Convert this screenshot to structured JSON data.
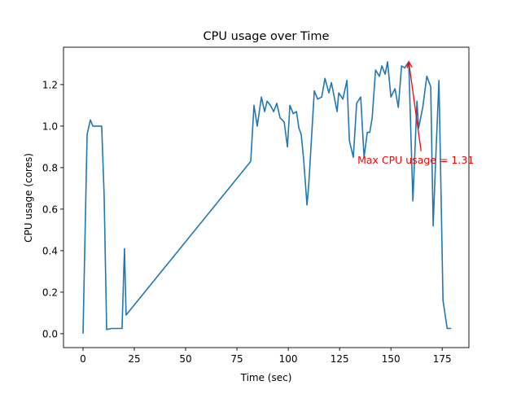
{
  "chart_data": {
    "type": "line",
    "title": "CPU usage over Time",
    "xlabel": "Time (sec)",
    "ylabel": "CPU usage (cores)",
    "xlim": [
      -9.5,
      188
    ],
    "ylim": [
      -0.067,
      1.38
    ],
    "xticks": [
      0,
      25,
      50,
      75,
      100,
      125,
      150,
      175
    ],
    "xtick_labels": [
      "0",
      "25",
      "50",
      "75",
      "100",
      "125",
      "150",
      "175"
    ],
    "yticks": [
      0,
      0.2,
      0.4,
      0.6,
      0.8,
      1.0,
      1.2
    ],
    "ytick_labels": [
      "0.0",
      "0.2",
      "0.4",
      "0.6",
      "0.8",
      "1.0",
      "1.2"
    ],
    "grid": false,
    "series": [
      {
        "color": "#1f77b4",
        "x": [
          0,
          2,
          3.6,
          4.8,
          9.1,
          10.3,
          11.5,
          13.9,
          19,
          20.2,
          21,
          81.7,
          83.3,
          84.9,
          86.9,
          88.5,
          89.7,
          91.3,
          92.9,
          94.4,
          96,
          98,
          99.6,
          100.8,
          102.4,
          104,
          105.2,
          106.3,
          107.5,
          109.1,
          110,
          112.7,
          114.3,
          116.3,
          117.9,
          119.8,
          121,
          123.8,
          124.6,
          126.6,
          128.6,
          129.8,
          131.7,
          133.3,
          135.3,
          136.9,
          138.5,
          139.7,
          140.9,
          142.5,
          144.4,
          145.6,
          147.2,
          148.4,
          150,
          152,
          153.6,
          155.2,
          156.7,
          158.7,
          160.7,
          162.7,
          163.5,
          165.5,
          167.5,
          169.4,
          170.6,
          171.8,
          173.4,
          175.4,
          177.4,
          179.4
        ],
        "y": [
          0,
          0.96,
          1.03,
          1.0,
          1.0,
          0.67,
          0.02,
          0.025,
          0.025,
          0.41,
          0.09,
          0.83,
          1.1,
          1.0,
          1.14,
          1.07,
          1.12,
          1.1,
          1.07,
          1.11,
          1.04,
          1.02,
          0.9,
          1.1,
          1.06,
          1.07,
          0.99,
          0.96,
          0.84,
          0.62,
          0.72,
          1.17,
          1.13,
          1.14,
          1.23,
          1.16,
          1.21,
          1.07,
          1.16,
          1.13,
          1.22,
          0.93,
          0.85,
          1.11,
          1.14,
          0.85,
          0.97,
          0.97,
          1.04,
          1.27,
          1.24,
          1.29,
          1.25,
          1.31,
          1.14,
          1.18,
          1.09,
          1.29,
          1.28,
          1.31,
          0.64,
          1.12,
          0.99,
          1.09,
          1.24,
          1.19,
          0.52,
          0.84,
          1.22,
          0.16,
          0.025,
          0.025
        ]
      }
    ],
    "annotation": {
      "text": "Max CPU usage = 1.31",
      "color": "#ff0000",
      "point": [
        158.7,
        1.31
      ],
      "text_position": [
        133.7,
        0.82
      ],
      "arrow_tail": [
        164.7,
        0.88
      ]
    }
  }
}
